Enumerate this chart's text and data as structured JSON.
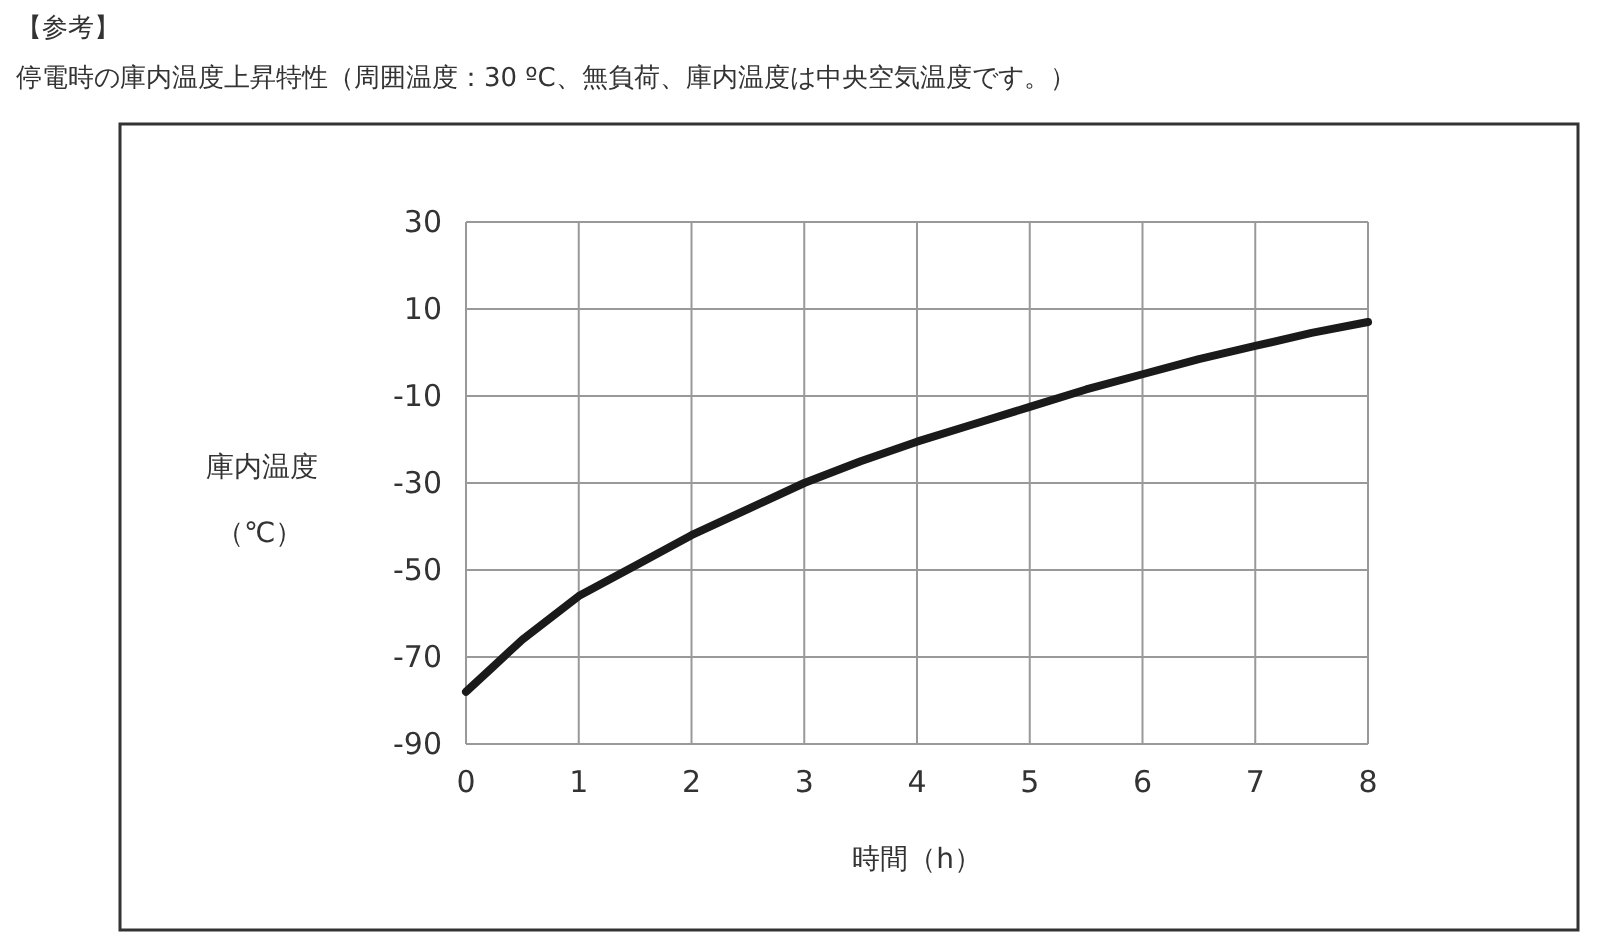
{
  "chart_data": {
    "type": "line",
    "title": "【参考】",
    "subtitle": "停電時の庫内温度上昇特性（周囲温度：30 ºC、無負荷、庫内温度は中央空気温度です。）",
    "xlabel": "時間（h）",
    "ylabel": "庫内温度（℃）",
    "series": [
      {
        "color": "#1a1a1a",
        "x": [
          0,
          0.25,
          0.5,
          0.75,
          1,
          1.5,
          2,
          2.5,
          3,
          3.5,
          4,
          4.5,
          5,
          5.5,
          6,
          6.5,
          7,
          7.5,
          8
        ],
        "values": [
          -78,
          -72,
          -66,
          -61,
          -56,
          -49,
          -42,
          -36,
          -30,
          -25,
          -20.5,
          -16.5,
          -12.5,
          -8.5,
          -5,
          -1.5,
          1.5,
          4.5,
          7
        ]
      }
    ],
    "xlim": [
      0,
      8
    ],
    "xticks": [
      0,
      1,
      2,
      3,
      4,
      5,
      6,
      7,
      8
    ],
    "ylim": [
      -90,
      30
    ],
    "yticks": [
      -90,
      -70,
      -50,
      -30,
      -10,
      10,
      30
    ],
    "grid": true,
    "marker": "none",
    "line_style": "solid"
  }
}
